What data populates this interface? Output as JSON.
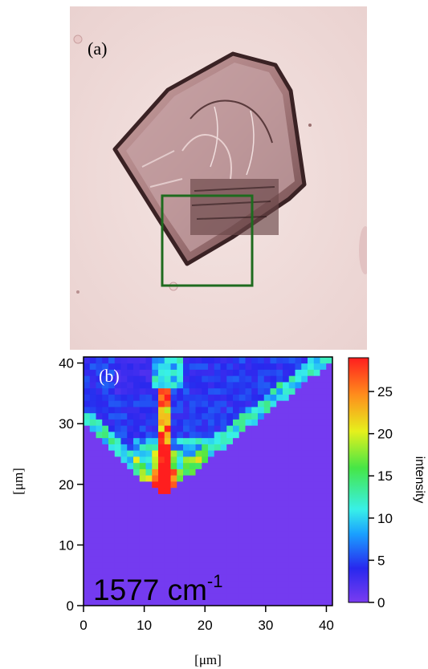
{
  "panel_a": {
    "label": "(a)",
    "image_description_icon": "micrograph-crystal-icon",
    "roi_box_color": "#1e6b1e"
  },
  "chart_data": {
    "type": "heatmap",
    "panel_label": "(b)",
    "annotation_main": "1577 cm",
    "annotation_sup": "-1",
    "xlabel": "[μm]",
    "ylabel": "[μm]",
    "xlim": [
      0,
      41
    ],
    "ylim": [
      0,
      41
    ],
    "xticks": [
      0,
      10,
      20,
      30,
      40
    ],
    "yticks": [
      0,
      10,
      20,
      30,
      40
    ],
    "colorbar": {
      "label": "intensity",
      "range": [
        0,
        29
      ],
      "ticks": [
        0,
        5,
        10,
        15,
        20,
        25
      ],
      "colors": [
        "#7a3cf0",
        "#2828ee",
        "#1aa0ff",
        "#38f0e8",
        "#46e646",
        "#e6f01c",
        "#ff8c1c",
        "#ff1e1e"
      ]
    },
    "grid_size": 40,
    "background_value": 0.3
  }
}
